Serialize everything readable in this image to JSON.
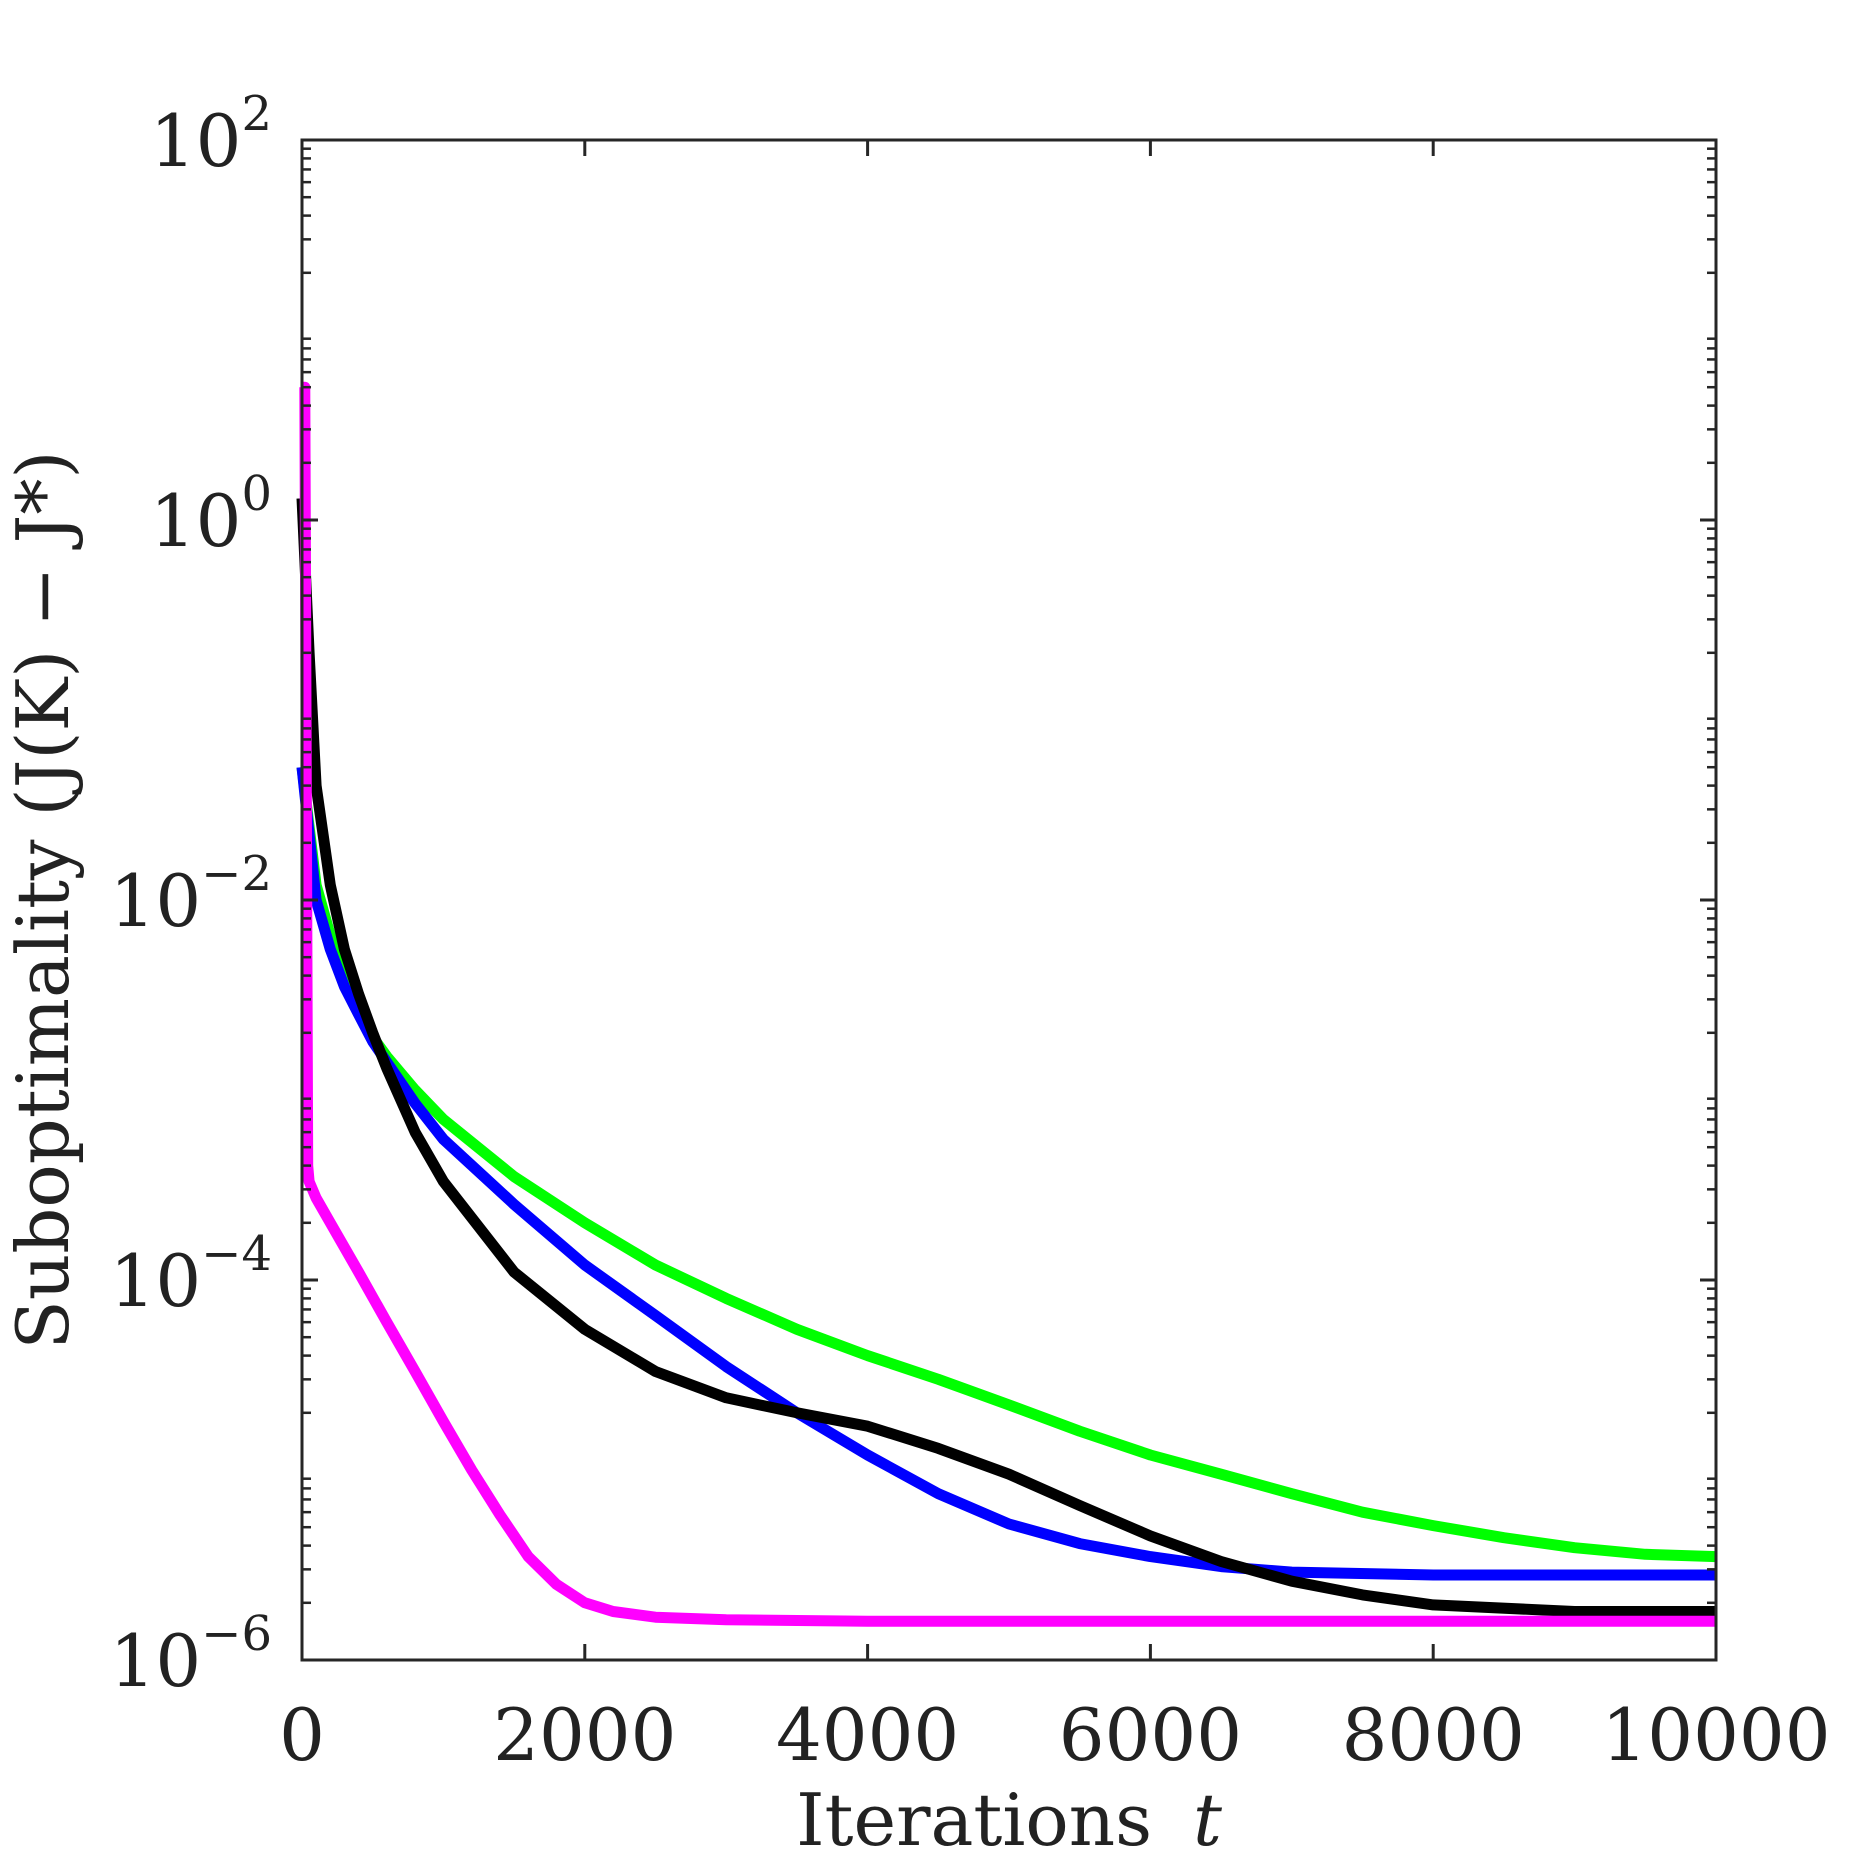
{
  "chart_data": {
    "type": "line",
    "xlabel": "Iterations",
    "xlabel_var": "t",
    "ylabel": "Suboptimality (J(K) − J*)",
    "xlim": [
      0,
      10000
    ],
    "ylim": [
      1e-06,
      100
    ],
    "yscale": "log",
    "grid": false,
    "x_ticks": [
      "0",
      "2000",
      "4000",
      "6000",
      "8000",
      "10000"
    ],
    "y_ticks": [
      {
        "value": 1e-06,
        "base": "10",
        "exp": "−6"
      },
      {
        "value": 0.0001,
        "base": "10",
        "exp": "−4"
      },
      {
        "value": 0.01,
        "base": "10",
        "exp": "−2"
      },
      {
        "value": 1,
        "base": "10",
        "exp": "0"
      },
      {
        "value": 100,
        "base": "10",
        "exp": "2"
      }
    ],
    "series": [
      {
        "color": "#00ff00",
        "points": [
          [
            0,
            0.05
          ],
          [
            100,
            0.012
          ],
          [
            200,
            0.0065
          ],
          [
            300,
            0.0038
          ],
          [
            400,
            0.0026
          ],
          [
            500,
            0.0019
          ],
          [
            600,
            0.0015
          ],
          [
            800,
            0.001
          ],
          [
            1000,
            0.0007
          ],
          [
            1500,
            0.00035
          ],
          [
            2000,
            0.0002
          ],
          [
            2500,
            0.00012
          ],
          [
            3000,
            8e-05
          ],
          [
            3500,
            5.5e-05
          ],
          [
            4000,
            4e-05
          ],
          [
            4500,
            3e-05
          ],
          [
            5000,
            2.2e-05
          ],
          [
            5500,
            1.6e-05
          ],
          [
            6000,
            1.2e-05
          ],
          [
            6500,
            9.5e-06
          ],
          [
            7000,
            7.5e-06
          ],
          [
            7500,
            6e-06
          ],
          [
            8000,
            5.1e-06
          ],
          [
            8500,
            4.4e-06
          ],
          [
            9000,
            3.9e-06
          ],
          [
            9500,
            3.6e-06
          ],
          [
            10000,
            3.5e-06
          ]
        ]
      },
      {
        "color": "#0000ff",
        "points": [
          [
            0,
            0.05
          ],
          [
            100,
            0.01
          ],
          [
            200,
            0.0055
          ],
          [
            300,
            0.0035
          ],
          [
            400,
            0.0025
          ],
          [
            500,
            0.0018
          ],
          [
            600,
            0.0014
          ],
          [
            800,
            0.00085
          ],
          [
            1000,
            0.00055
          ],
          [
            1500,
            0.00025
          ],
          [
            2000,
            0.00012
          ],
          [
            2500,
            6.5e-05
          ],
          [
            3000,
            3.5e-05
          ],
          [
            3500,
            2e-05
          ],
          [
            4000,
            1.2e-05
          ],
          [
            4500,
            7.5e-06
          ],
          [
            5000,
            5.2e-06
          ],
          [
            5500,
            4.1e-06
          ],
          [
            6000,
            3.5e-06
          ],
          [
            6500,
            3.1e-06
          ],
          [
            7000,
            2.9e-06
          ],
          [
            8000,
            2.8e-06
          ],
          [
            9000,
            2.8e-06
          ],
          [
            10000,
            2.8e-06
          ]
        ]
      },
      {
        "color": "#000000",
        "points": [
          [
            0,
            1.3
          ],
          [
            50,
            0.2
          ],
          [
            100,
            0.04
          ],
          [
            200,
            0.012
          ],
          [
            300,
            0.0055
          ],
          [
            400,
            0.0032
          ],
          [
            500,
            0.002
          ],
          [
            600,
            0.0013
          ],
          [
            800,
            0.0006
          ],
          [
            1000,
            0.00033
          ],
          [
            1500,
            0.00011
          ],
          [
            2000,
            5.5e-05
          ],
          [
            2500,
            3.3e-05
          ],
          [
            3000,
            2.4e-05
          ],
          [
            3500,
            2e-05
          ],
          [
            4000,
            1.7e-05
          ],
          [
            4500,
            1.3e-05
          ],
          [
            5000,
            9.5e-06
          ],
          [
            5500,
            6.5e-06
          ],
          [
            6000,
            4.5e-06
          ],
          [
            6500,
            3.3e-06
          ],
          [
            7000,
            2.6e-06
          ],
          [
            7500,
            2.2e-06
          ],
          [
            8000,
            1.95e-06
          ],
          [
            9000,
            1.8e-06
          ],
          [
            10000,
            1.8e-06
          ]
        ]
      },
      {
        "color": "#ff00ff",
        "points": [
          [
            0,
            5
          ],
          [
            20,
            5
          ],
          [
            40,
            0.0004
          ],
          [
            50,
            0.00033
          ],
          [
            100,
            0.00027
          ],
          [
            200,
            0.0002
          ],
          [
            400,
            0.00011
          ],
          [
            600,
            6e-05
          ],
          [
            800,
            3.3e-05
          ],
          [
            1000,
            1.8e-05
          ],
          [
            1200,
            1e-05
          ],
          [
            1400,
            5.8e-06
          ],
          [
            1600,
            3.5e-06
          ],
          [
            1800,
            2.5e-06
          ],
          [
            2000,
            2e-06
          ],
          [
            2200,
            1.8e-06
          ],
          [
            2500,
            1.68e-06
          ],
          [
            3000,
            1.63e-06
          ],
          [
            4000,
            1.6e-06
          ],
          [
            6000,
            1.6e-06
          ],
          [
            8000,
            1.6e-06
          ],
          [
            10000,
            1.6e-06
          ]
        ]
      }
    ]
  }
}
